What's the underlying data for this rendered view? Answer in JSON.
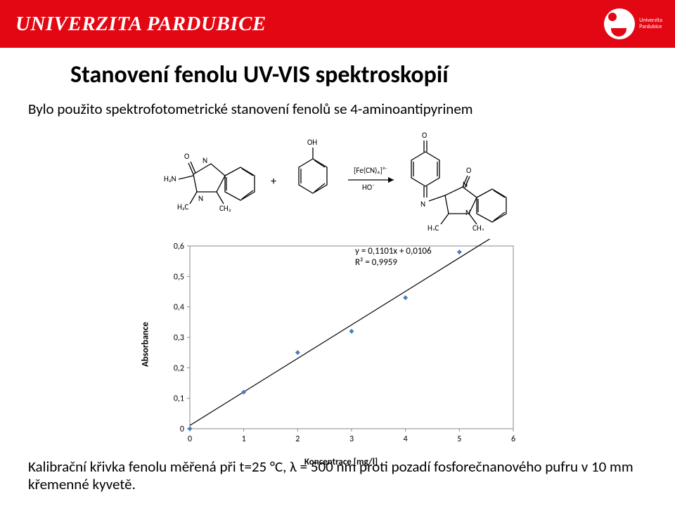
{
  "header": {
    "university": "UNIVERZITA PARDUBICE",
    "logo_tag_line1": "Univerzita",
    "logo_tag_line2": "Pardubice",
    "bg_color": "#e30613",
    "text_color": "#ffffff"
  },
  "title": "Stanovení fenolu UV-VIS spektroskopií",
  "body_line": "Bylo použito spektrofotometrické stanovení fenolů se 4-aminoantipyrinem",
  "reaction": {
    "reagent_top": "[Fe(CN)₆]³⁻",
    "reagent_bottom": "HO⁻",
    "plus": "+",
    "labels": {
      "H2N": "H₂N",
      "N": "N",
      "O": "O",
      "OH": "OH",
      "H3C": "H₃C",
      "CH3": "CH₃"
    }
  },
  "chart": {
    "type": "scatter-with-fit",
    "x_label": "Koncentrace [mg/l]",
    "y_label": "Absorbance",
    "equation": "y = 0,1101x + 0,0106",
    "r2": "R² = 0,9959",
    "x_ticks": [
      "0",
      "1",
      "2",
      "3",
      "4",
      "5",
      "6"
    ],
    "y_ticks": [
      "0",
      "0,1",
      "0,2",
      "0,3",
      "0,4",
      "0,5",
      "0,6"
    ],
    "xlim": [
      0,
      6
    ],
    "ylim": [
      0,
      0.6
    ],
    "points": [
      {
        "x": 0.0,
        "y": 0.0
      },
      {
        "x": 1.0,
        "y": 0.12
      },
      {
        "x": 2.0,
        "y": 0.25
      },
      {
        "x": 3.0,
        "y": 0.32
      },
      {
        "x": 4.0,
        "y": 0.43
      },
      {
        "x": 5.0,
        "y": 0.58
      }
    ],
    "marker_color": "#4a7ebb",
    "marker_size": 7,
    "line_color": "#000000",
    "line_width": 1.2,
    "axis_color": "#888888",
    "tick_font_size": 12,
    "background": "#ffffff"
  },
  "caption": "Kalibrační křivka fenolu měřená při  t=25 °C, λ = 500 nm proti pozadí fosforečnanového pufru v 10 mm křemenné kyvetě."
}
